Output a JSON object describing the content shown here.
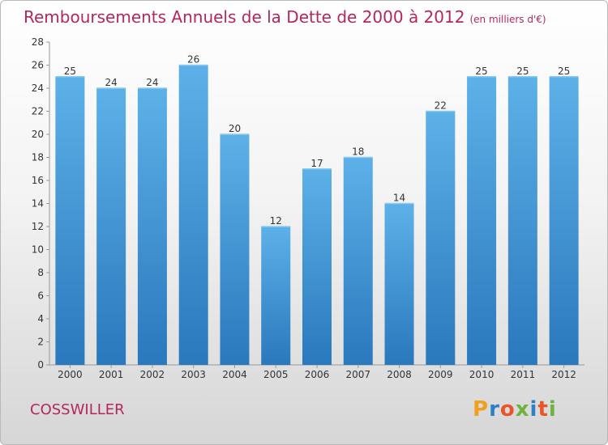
{
  "title": "Remboursements Annuels de la Dette de 2000 à 2012",
  "unit": "(en milliers d'€)",
  "commune": "COSSWILLER",
  "logo": {
    "text": "Proxiti",
    "letter_colors": [
      "#f0a020",
      "#2e7fc4",
      "#e9542b",
      "#6fb33f",
      "#2e7fc4",
      "#e9542b",
      "#6fb33f"
    ]
  },
  "colors": {
    "bar": "#3a8fd6",
    "bar_light": "#5aaee6",
    "title": "#b4275e"
  },
  "chart_data": {
    "type": "bar",
    "categories": [
      "2000",
      "2001",
      "2002",
      "2003",
      "2004",
      "2005",
      "2006",
      "2007",
      "2008",
      "2009",
      "2010",
      "2011",
      "2012"
    ],
    "values": [
      25,
      24,
      24,
      26,
      20,
      12,
      17,
      18,
      14,
      22,
      25,
      25,
      25
    ],
    "ylim": [
      0,
      28
    ],
    "yticks": [
      0,
      2,
      4,
      6,
      8,
      10,
      12,
      14,
      16,
      18,
      20,
      22,
      24,
      26,
      28
    ],
    "grid": false,
    "legend": "none"
  }
}
